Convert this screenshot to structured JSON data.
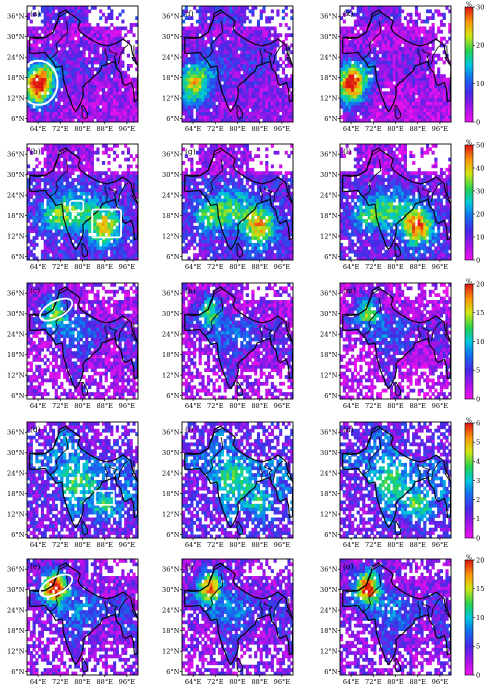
{
  "axes": {
    "lat_labels": [
      "36°N",
      "30°N",
      "24°N",
      "18°N",
      "12°N",
      "6°N"
    ],
    "lon_labels": [
      "64°E",
      "72°E",
      "80°E",
      "88°E",
      "96°E"
    ]
  },
  "colorbars": [
    {
      "unit": "%",
      "ticks": [
        "30",
        "20",
        "10",
        "0"
      ]
    },
    {
      "unit": "%",
      "ticks": [
        "50",
        "40",
        "30",
        "20",
        "10",
        "0"
      ]
    },
    {
      "unit": "%",
      "ticks": [
        "20",
        "15",
        "10",
        "5",
        "0"
      ]
    },
    {
      "unit": "%",
      "ticks": [
        "6",
        "5",
        "4",
        "3",
        "2",
        "1",
        "0"
      ]
    },
    {
      "unit": "%",
      "ticks": [
        "20",
        "15",
        "10",
        "5",
        "0"
      ]
    }
  ],
  "rows": [
    {
      "panels": [
        {
          "label": "(a)",
          "pattern": "arabian",
          "intensity": 0.95,
          "base": 0.12,
          "highlights": [
            "ellipse-arabian-sea"
          ]
        },
        {
          "label": "(f)",
          "pattern": "arabian",
          "intensity": 0.6,
          "base": 0.15,
          "highlights": []
        },
        {
          "label": "(k)",
          "pattern": "arabian",
          "intensity": 0.9,
          "base": 0.1,
          "highlights": []
        }
      ]
    },
    {
      "panels": [
        {
          "label": "(b)",
          "pattern": "central",
          "intensity": 0.7,
          "base": 0.22,
          "highlights": [
            "box-central-india",
            "box-bay-of-bengal"
          ]
        },
        {
          "label": "(g)",
          "pattern": "central",
          "intensity": 0.75,
          "base": 0.22,
          "highlights": []
        },
        {
          "label": "(l)",
          "pattern": "central",
          "intensity": 0.9,
          "base": 0.2,
          "highlights": []
        }
      ]
    },
    {
      "panels": [
        {
          "label": "(c)",
          "pattern": "northwest",
          "intensity": 0.55,
          "base": 0.12,
          "highlights": [
            "ellipse-northwest"
          ]
        },
        {
          "label": "(h)",
          "pattern": "northwest",
          "intensity": 0.5,
          "base": 0.12,
          "highlights": []
        },
        {
          "label": "(m)",
          "pattern": "northwest",
          "intensity": 0.55,
          "base": 0.1,
          "highlights": []
        }
      ]
    },
    {
      "panels": [
        {
          "label": "(d)",
          "pattern": "bay",
          "intensity": 0.4,
          "base": 0.2,
          "highlights": [
            "box-east-coast"
          ]
        },
        {
          "label": "(i)",
          "pattern": "bay",
          "intensity": 0.4,
          "base": 0.2,
          "highlights": []
        },
        {
          "label": "(n)",
          "pattern": "bay",
          "intensity": 0.45,
          "base": 0.2,
          "highlights": []
        }
      ]
    },
    {
      "panels": [
        {
          "label": "(e)",
          "pattern": "northwest",
          "intensity": 0.9,
          "base": 0.15,
          "highlights": [
            "ellipse-northwest"
          ]
        },
        {
          "label": "(j)",
          "pattern": "northwest",
          "intensity": 0.75,
          "base": 0.15,
          "highlights": []
        },
        {
          "label": "(o)",
          "pattern": "northwest",
          "intensity": 0.85,
          "base": 0.15,
          "highlights": []
        }
      ]
    }
  ]
}
